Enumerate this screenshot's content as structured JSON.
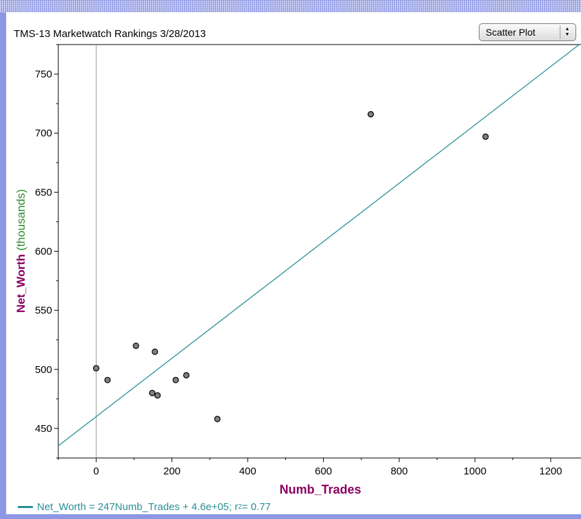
{
  "window": {
    "title": "TMS-13 Marketwatch Rankings 3/28/2013",
    "plot_type_selector": {
      "selected": "Scatter Plot",
      "arrows_icon": "updown-stepper-icon"
    }
  },
  "colors": {
    "frame": "#8d97e3",
    "regression_line": "#2a8f95",
    "y_name": "#8b0060",
    "y_unit": "#2e8b2e",
    "x_label": "#8b0060",
    "point_fill": "#808080",
    "point_stroke": "#000000"
  },
  "chart_data": {
    "type": "scatter",
    "title": "TMS-13 Marketwatch Rankings 3/28/2013",
    "xlabel": "Numb_Trades",
    "ylabel_name": "Net_Worth",
    "ylabel_unit": "(thousands)",
    "xlim": [
      -100,
      1280
    ],
    "ylim": [
      425,
      775
    ],
    "x_ticks": [
      0,
      200,
      400,
      600,
      800,
      1000,
      1200
    ],
    "y_ticks": [
      450,
      500,
      550,
      600,
      650,
      700,
      750
    ],
    "grid": false,
    "points": [
      {
        "x": 0,
        "y": 501
      },
      {
        "x": 30,
        "y": 491
      },
      {
        "x": 105,
        "y": 520
      },
      {
        "x": 148,
        "y": 480
      },
      {
        "x": 155,
        "y": 515
      },
      {
        "x": 162,
        "y": 478
      },
      {
        "x": 210,
        "y": 491
      },
      {
        "x": 238,
        "y": 495
      },
      {
        "x": 320,
        "y": 458
      },
      {
        "x": 725,
        "y": 716
      },
      {
        "x": 1028,
        "y": 697
      }
    ],
    "regression": {
      "slope": 0.247,
      "intercept": 460,
      "r_squared": 0.77
    },
    "legend": {
      "position": "bottom-left",
      "equation": "Net_Worth = 247Numb_Trades + 4.6e+05; r",
      "r_squared_label": " = 0.77"
    }
  }
}
